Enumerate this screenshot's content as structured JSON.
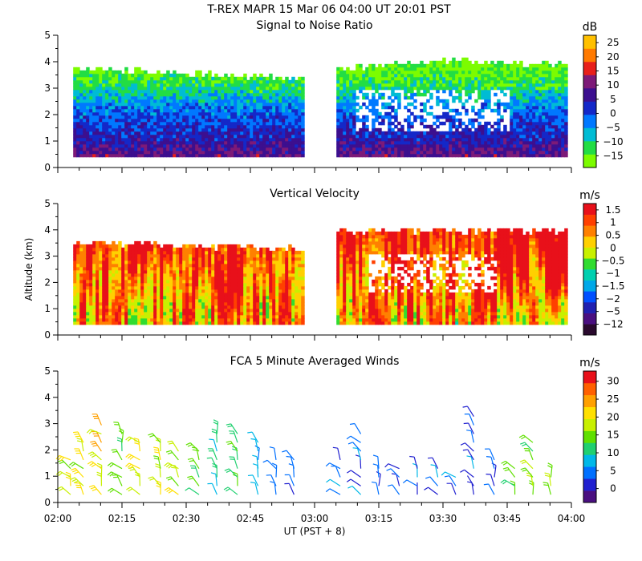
{
  "header": {
    "title": "T-REX   MAPR 15 Mar 06   04:00 UT   20:01   PST"
  },
  "chart_data": [
    {
      "type": "heatmap",
      "title": "Signal to Noise Ratio",
      "ylabel": "",
      "ylim": [
        0,
        5
      ],
      "yticks": [
        "0",
        "1",
        "2",
        "3",
        "4",
        "5"
      ],
      "time_range_hours": [
        2.0,
        4.0
      ],
      "data_gaps_hours": [
        [
          2.958,
          3.083
        ]
      ],
      "echo_top_km": {
        "x": [
          2.06,
          2.25,
          2.5,
          2.75,
          2.96,
          3.08,
          3.3,
          3.5,
          3.7,
          3.98
        ],
        "y": [
          3.7,
          3.6,
          3.5,
          3.4,
          3.3,
          3.7,
          3.8,
          4.0,
          3.9,
          3.8
        ]
      },
      "field_profile": {
        "altitude_km": [
          0.4,
          1.0,
          2.0,
          3.0,
          3.7
        ],
        "values": [
          10,
          5,
          0,
          -10,
          -15
        ]
      },
      "colorbar": {
        "unit": "dB",
        "tick_labels": [
          "25",
          "20",
          "15",
          "10",
          "5",
          "0",
          "−5",
          "−10",
          "−15"
        ],
        "colors": [
          "#7cfc00",
          "#22dd44",
          "#00bcd4",
          "#0078ff",
          "#1428c8",
          "#3c0f8f",
          "#7d1a78",
          "#e8201a",
          "#ff7a00",
          "#ffc000"
        ],
        "range": [
          -17.5,
          27.5
        ]
      }
    },
    {
      "type": "heatmap",
      "title": "Vertical Velocity",
      "ylabel": "Altitude (km)",
      "ylim": [
        0,
        5
      ],
      "yticks": [
        "0",
        "1",
        "2",
        "3",
        "4",
        "5"
      ],
      "time_range_hours": [
        2.0,
        4.0
      ],
      "data_gaps_hours": [
        [
          2.958,
          3.083
        ]
      ],
      "field_profile": {
        "altitude_km": [
          0.4,
          2.0,
          3.5
        ],
        "values": [
          -1,
          0,
          1
        ]
      },
      "colorbar": {
        "unit": "m/s",
        "tick_labels": [
          "1.5",
          "1",
          "0.5",
          "0",
          "−0.5",
          "−1",
          "−1.5",
          "−2",
          "−5",
          "−12"
        ],
        "colors": [
          "#2a0a2e",
          "#4a0f80",
          "#2020b0",
          "#0050ff",
          "#00a8e8",
          "#00d0b0",
          "#30dc30",
          "#c8f000",
          "#ffd000",
          "#ff8000",
          "#ff4000",
          "#e8101a"
        ],
        "range": [
          -12,
          2
        ]
      }
    },
    {
      "type": "scatter",
      "title": "FCA 5 Minute Averaged Winds",
      "xlabel": "UT  (PST + 8)",
      "ylabel": "",
      "ylim": [
        0,
        5
      ],
      "yticks": [
        "0",
        "1",
        "2",
        "3",
        "4",
        "5"
      ],
      "xticks": [
        "02:00",
        "02:15",
        "02:30",
        "02:45",
        "03:00",
        "03:15",
        "03:30",
        "03:45",
        "04:00"
      ],
      "time_range_hours": [
        2.0,
        4.0
      ],
      "barb_columns_hours": [
        2.05,
        2.1,
        2.17,
        2.25,
        2.32,
        2.4,
        2.47,
        2.55,
        2.62,
        2.7,
        2.78,
        2.85,
        2.92,
        3.1,
        3.18,
        3.25,
        3.33,
        3.4,
        3.48,
        3.55,
        3.62,
        3.7,
        3.78,
        3.85,
        3.92
      ],
      "barb_column_top_km": [
        1.8,
        2.5,
        3.0,
        2.7,
        2.6,
        2.4,
        2.2,
        2.0,
        2.9,
        2.8,
        2.6,
        1.8,
        1.7,
        1.7,
        2.7,
        1.6,
        1.5,
        1.6,
        1.4,
        1.2,
        3.6,
        1.8,
        1.6,
        2.4,
        1.1
      ],
      "barb_column_speed_ms": [
        18,
        20,
        22,
        16,
        21,
        20,
        18,
        14,
        12,
        15,
        11,
        8,
        6,
        8,
        7,
        6,
        5,
        6,
        7,
        8,
        6,
        7,
        14,
        16,
        18
      ],
      "colorbar": {
        "unit": "m/s",
        "tick_labels": [
          "30",
          "25",
          "20",
          "15",
          "10",
          "5",
          "0"
        ],
        "colors": [
          "#4a0f80",
          "#2020d0",
          "#0070ff",
          "#00b8e8",
          "#20d070",
          "#60e000",
          "#c8f000",
          "#ffe000",
          "#ffa000",
          "#ff6000",
          "#e8101a"
        ],
        "range": [
          0,
          32
        ]
      }
    }
  ]
}
